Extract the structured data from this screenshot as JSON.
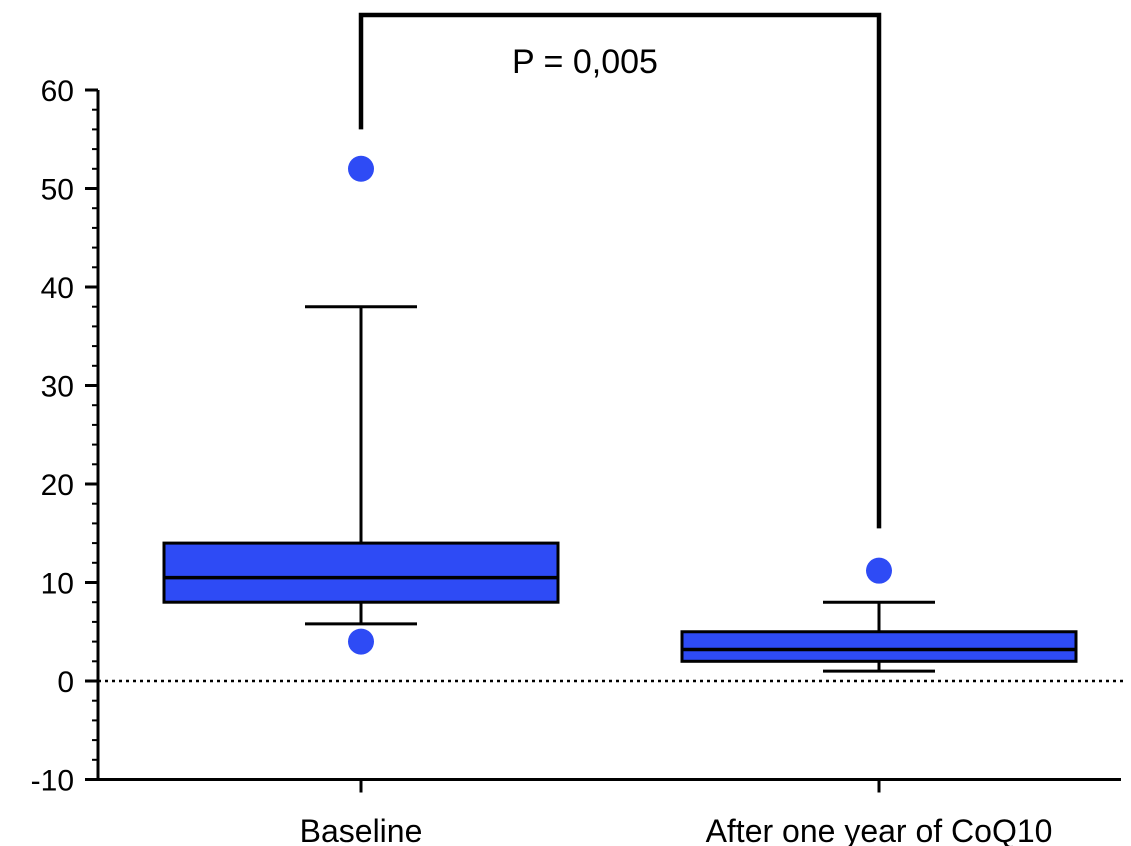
{
  "chart_data": {
    "type": "box",
    "categories": [
      "Baseline",
      "After one year of CoQ10"
    ],
    "boxes": [
      {
        "category": "Baseline",
        "whisker_low": 5.8,
        "q1": 8,
        "median": 10.5,
        "q3": 14,
        "whisker_high": 38,
        "outliers": [
          52,
          4
        ]
      },
      {
        "category": "After one year of CoQ10",
        "whisker_low": 1,
        "q1": 2,
        "median": 3.2,
        "q3": 5,
        "whisker_high": 8,
        "outliers": [
          11.2
        ]
      }
    ],
    "ylim": [
      -10,
      60
    ],
    "yticks": [
      -10,
      0,
      10,
      20,
      30,
      40,
      50,
      60
    ],
    "reference_line": 0,
    "annotation": {
      "text": "P = 0,005",
      "bracket_left_y": 56,
      "bracket_right_y": 15.5
    },
    "colors": {
      "box_fill": "#2E4BF5",
      "outlier": "#2E4BF5",
      "line": "#000000"
    },
    "legend": "none",
    "grid": false
  }
}
